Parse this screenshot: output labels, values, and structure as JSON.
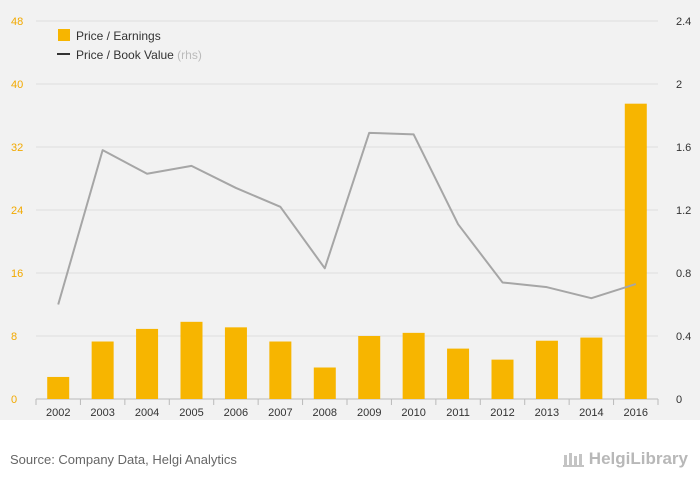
{
  "colors": {
    "bar": "#f7b500",
    "line": "#a6a6a6",
    "legend_line": "#333333",
    "left_axis": "#f2a900",
    "right_axis": "#333333",
    "grid": "#dddddd"
  },
  "chart_data": {
    "type": "bar",
    "categories": [
      "2002",
      "2003",
      "2004",
      "2005",
      "2006",
      "2007",
      "2008",
      "2009",
      "2010",
      "2011",
      "2012",
      "2013",
      "2014",
      "2016"
    ],
    "series": [
      {
        "name": "Price / Earnings",
        "type": "bar",
        "axis": "left",
        "values": [
          2.8,
          7.3,
          8.9,
          9.8,
          9.1,
          7.3,
          4.0,
          8.0,
          8.4,
          6.4,
          5.0,
          7.4,
          7.8,
          37.5
        ]
      },
      {
        "name": "Price / Book Value",
        "name_note": "(rhs)",
        "type": "line",
        "axis": "right",
        "values": [
          0.6,
          1.58,
          1.43,
          1.48,
          1.34,
          1.22,
          0.83,
          1.69,
          1.68,
          1.11,
          0.74,
          0.71,
          0.64,
          0.73
        ]
      }
    ],
    "y_left": {
      "min": 0,
      "max": 48,
      "ticks": [
        "0",
        "8",
        "16",
        "24",
        "32",
        "40",
        "48"
      ]
    },
    "y_right": {
      "min": 0,
      "max": 2.4,
      "ticks": [
        "0",
        "0.4",
        "0.8",
        "1.2",
        "1.6",
        "2",
        "2.4"
      ]
    },
    "grid": "horizontal",
    "legend_position": "top-left"
  },
  "footer": {
    "source": "Source: Company Data, Helgi Analytics",
    "logo_text": "HelgiLibrary"
  }
}
